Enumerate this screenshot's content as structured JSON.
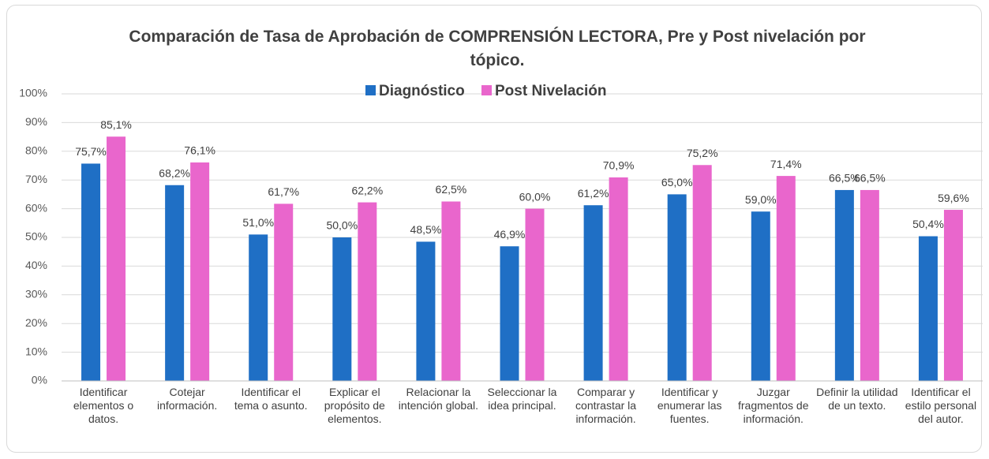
{
  "chart_data": {
    "type": "bar",
    "title": "Comparación  de Tasa de Aprobación de COMPRENSIÓN LECTORA, Pre y Post nivelación por tópico.",
    "categories": [
      "Identificar elementos o datos.",
      "Cotejar información.",
      "Identificar el tema o asunto.",
      "Explicar el propósito de elementos.",
      "Relacionar la intención global.",
      "Seleccionar la idea principal.",
      "Comparar y contrastar la información.",
      "Identificar y enumerar las fuentes.",
      "Juzgar fragmentos de información.",
      "Definir la utilidad de un texto.",
      "Identificar el estilo personal del autor."
    ],
    "series": [
      {
        "name": "Diagnóstico",
        "color": "#1f6fc5",
        "values": [
          75.7,
          68.2,
          51.0,
          50.0,
          48.5,
          46.9,
          61.2,
          65.0,
          59.0,
          66.5,
          50.4
        ],
        "value_labels": [
          "75,7%",
          "68,2%",
          "51,0%",
          "50,0%",
          "48,5%",
          "46,9%",
          "61,2%",
          "65,0%",
          "59,0%",
          "66,5%",
          "50,4%"
        ]
      },
      {
        "name": "Post Nivelación",
        "color": "#e966cc",
        "values": [
          85.1,
          76.1,
          61.7,
          62.2,
          62.5,
          60.0,
          70.9,
          75.2,
          71.4,
          66.5,
          59.6
        ],
        "value_labels": [
          "85,1%",
          "76,1%",
          "61,7%",
          "62,2%",
          "62,5%",
          "60,0%",
          "70,9%",
          "75,2%",
          "71,4%",
          "66,5%",
          "59,6%"
        ]
      }
    ],
    "ylim": [
      0,
      100
    ],
    "yticks": [
      {
        "value": 0,
        "label": "0%"
      },
      {
        "value": 10,
        "label": "10%"
      },
      {
        "value": 20,
        "label": "20%"
      },
      {
        "value": 30,
        "label": "30%"
      },
      {
        "value": 40,
        "label": "40%"
      },
      {
        "value": 50,
        "label": "50%"
      },
      {
        "value": 60,
        "label": "60%"
      },
      {
        "value": 70,
        "label": "70%"
      },
      {
        "value": 80,
        "label": "80%"
      },
      {
        "value": 90,
        "label": "90%"
      },
      {
        "value": 100,
        "label": "100%"
      }
    ],
    "grid": true,
    "legend": "top"
  }
}
